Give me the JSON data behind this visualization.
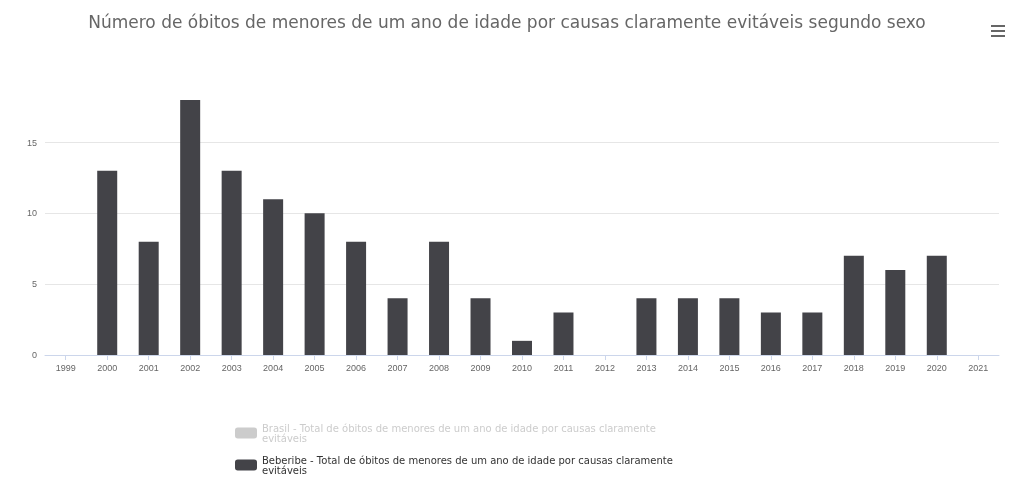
{
  "chart_data": {
    "type": "bar",
    "title": "Número de óbitos de menores de um ano de idade por causas claramente evitáveis segundo sexo",
    "categories": [
      "1999",
      "2000",
      "2001",
      "2002",
      "2003",
      "2004",
      "2005",
      "2006",
      "2007",
      "2008",
      "2009",
      "2010",
      "2011",
      "2012",
      "2013",
      "2014",
      "2015",
      "2016",
      "2017",
      "2018",
      "2019",
      "2020",
      "2021"
    ],
    "series": [
      {
        "name": "Brasil - Total de óbitos de menores de um ano de idade por causas claramente evitáveis",
        "color": "#cccccc",
        "values": [
          null,
          null,
          null,
          null,
          null,
          null,
          null,
          null,
          null,
          null,
          null,
          null,
          null,
          null,
          null,
          null,
          null,
          null,
          null,
          null,
          null,
          null,
          null
        ]
      },
      {
        "name": "Beberibe - Total de óbitos de menores de um ano de idade por causas claramente evitáveis",
        "color": "#434348",
        "values": [
          null,
          13,
          8,
          18,
          13,
          11,
          10,
          8,
          4,
          8,
          4,
          1,
          3,
          0,
          4,
          4,
          4,
          3,
          3,
          7,
          6,
          7,
          null
        ]
      }
    ],
    "ylim": [
      0,
      18
    ],
    "yticks": [
      0,
      5,
      10,
      15
    ],
    "grid": "y",
    "legend": "bottom"
  }
}
